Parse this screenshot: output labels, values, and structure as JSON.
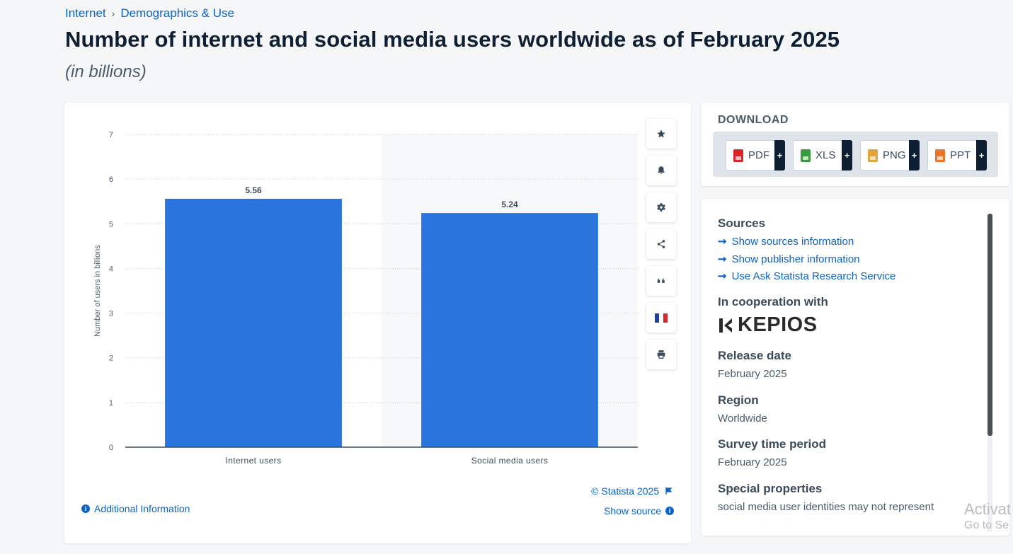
{
  "breadcrumb": {
    "item1": "Internet",
    "separator": "›",
    "item2": "Demographics & Use"
  },
  "title": "Number of internet and social media users worldwide as of February 2025",
  "subtitle": "(in billions)",
  "chart": {
    "credit": "© Statista 2025",
    "show_source": "Show source",
    "additional_info": "Additional Information",
    "tools": [
      "star-icon",
      "bell-icon",
      "gear-icon",
      "share-icon",
      "quote-icon",
      "french-flag-icon",
      "print-icon"
    ]
  },
  "chart_data": {
    "type": "bar",
    "categories": [
      "Internet users",
      "Social media users"
    ],
    "values": [
      5.56,
      5.24
    ],
    "value_labels": [
      "5.56",
      "5.24"
    ],
    "title": "",
    "xlabel": "",
    "ylabel": "Number of users in billions",
    "ylim": [
      0,
      7
    ],
    "yticks": [
      "0",
      "1",
      "2",
      "3",
      "4",
      "5",
      "6",
      "7"
    ],
    "grid": true,
    "bar_color": "#2a74dd"
  },
  "download": {
    "heading": "DOWNLOAD",
    "formats": [
      {
        "label": "PDF",
        "icon": "pdf-file-icon",
        "color": "#d6262b",
        "plus": "+"
      },
      {
        "label": "XLS",
        "icon": "xls-file-icon",
        "color": "#3a9a3f",
        "plus": "+"
      },
      {
        "label": "PNG",
        "icon": "png-file-icon",
        "color": "#e0a43a",
        "plus": "+"
      },
      {
        "label": "PPT",
        "icon": "ppt-file-icon",
        "color": "#e8762b",
        "plus": "+"
      }
    ]
  },
  "info": {
    "sources_heading": "Sources",
    "links": [
      "Show sources information",
      "Show publisher information",
      "Use Ask Statista Research Service"
    ],
    "cooperation_heading": "In cooperation with",
    "partner_logo": "KEPIOS",
    "release_heading": "Release date",
    "release_value": "February 2025",
    "region_heading": "Region",
    "region_value": "Worldwide",
    "survey_heading": "Survey time period",
    "survey_value": "February 2025",
    "special_heading": "Special properties",
    "special_value": "social media user identities may not represent"
  },
  "watermark": {
    "line1": "Activat",
    "line2": "Go to Se"
  }
}
